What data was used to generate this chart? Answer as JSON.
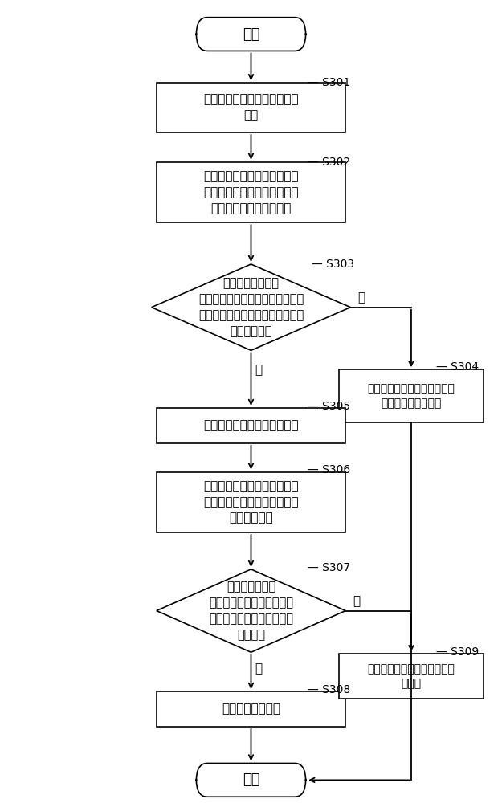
{
  "bg_color": "#ffffff",
  "line_color": "#000000",
  "text_color": "#000000",
  "font_size": 11,
  "label_font_size": 10,
  "start_text": "开始",
  "end_text": "结束",
  "s301_text": "向半导体装载盒发出加工控制\n指令",
  "s302_text": "将所述加工控制指令与半导体\n装载盒存储的加工控制信息中\n的加工流程信息进行对比",
  "s303_text": "判断加工控制指令\n中的加工流程信息与半导体装载盒\n存储的加工控制信息中的加工流程\n信息是否一致",
  "s304_text": "半导体装载盒发出警示信息，\n并终止执行加工操作",
  "s305_text": "向加工设备发出加工控制指令",
  "s306_text": "加工设备根据加工控制指令，\n检测相应半导体装载盒存储的\n加工控制信息",
  "s307_text": "对比半导体装载\n盒存储的加工控制信息是否\n与加工控制指令的加工控制\n信息一致",
  "s308_text": "加工设备执行加工",
  "s309_text": "加工设备终止加工，并发出警\n示信息",
  "yes_text": "是",
  "no_text": "否"
}
